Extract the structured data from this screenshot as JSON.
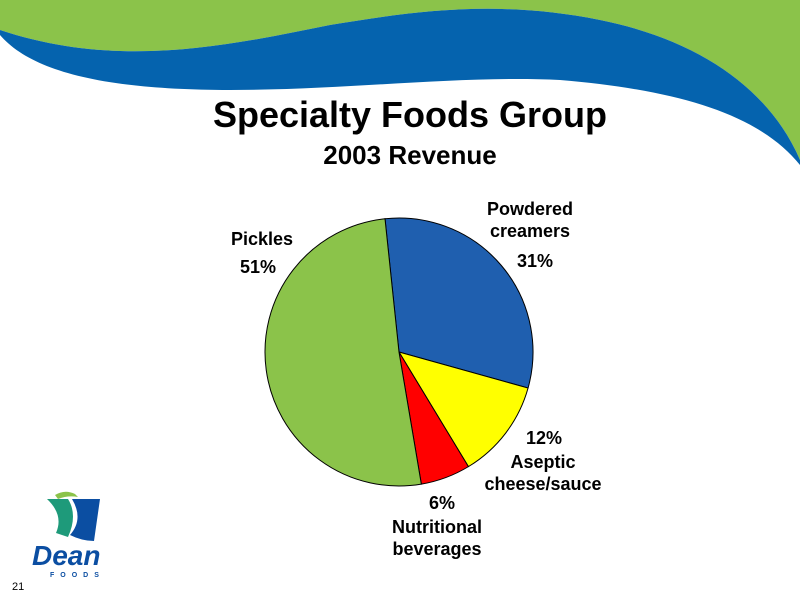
{
  "slide": {
    "page_number": "21",
    "logo_text": "Dean FOODS"
  },
  "colors": {
    "green": "#8BC34A",
    "blue": "#0563AE",
    "yellow": "#FFFF00",
    "red": "#FF0000"
  },
  "chart_data": {
    "type": "pie",
    "title": "Specialty Foods Group",
    "subtitle": "2003 Revenue",
    "slices": [
      {
        "name": "Powdered creamers",
        "value": 31,
        "label": "31%",
        "color": "#1F5FAF"
      },
      {
        "name": "Aseptic cheese/sauce",
        "value": 12,
        "label": "12%",
        "color": "#FFFF00"
      },
      {
        "name": "Nutritional beverages",
        "value": 6,
        "label": "6%",
        "color": "#FF0000"
      },
      {
        "name": "Pickles",
        "value": 51,
        "label": "51%",
        "color": "#8BC34A"
      }
    ]
  }
}
